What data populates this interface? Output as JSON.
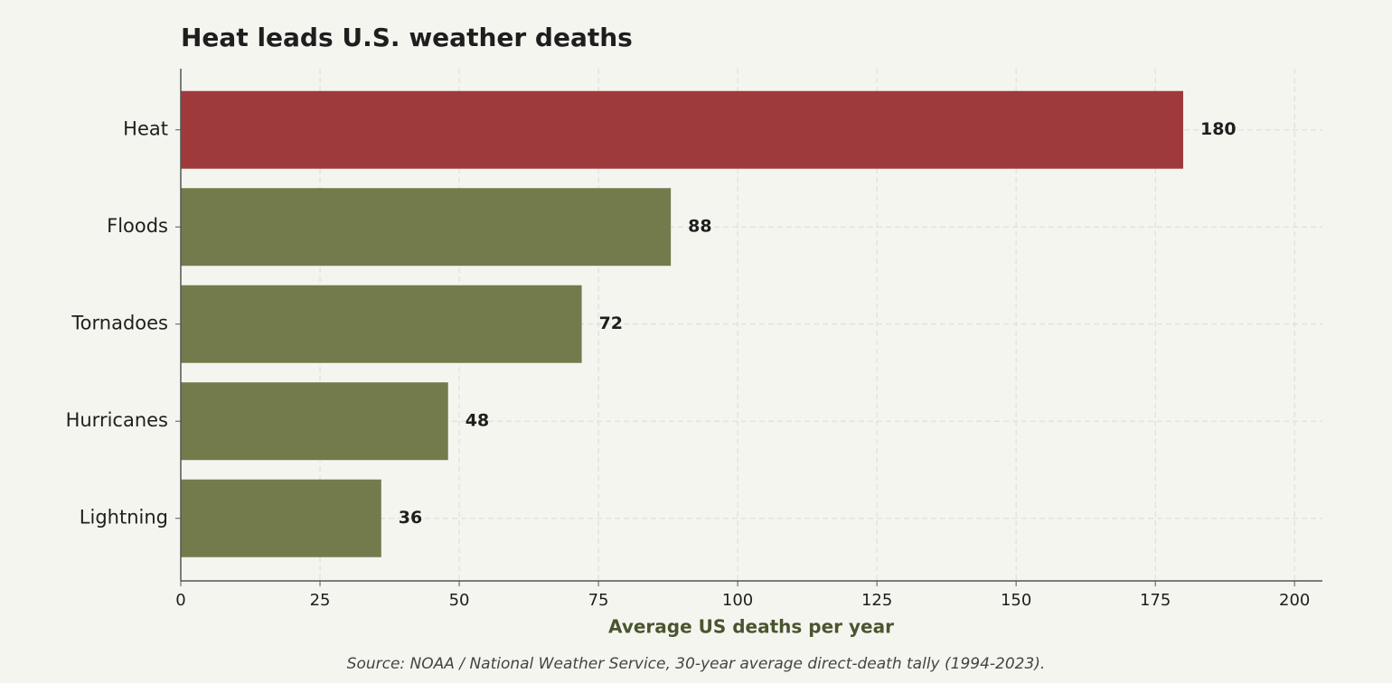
{
  "chart_data": {
    "type": "barh",
    "title": "Heat leads U.S. weather deaths",
    "categories": [
      "Heat",
      "Floods",
      "Tornadoes",
      "Hurricanes",
      "Lightning"
    ],
    "values": [
      180,
      88,
      72,
      48,
      36
    ],
    "colors": [
      "#9e3a3c",
      "#737b4c",
      "#737b4c",
      "#737b4c",
      "#737b4c"
    ],
    "xlim": [
      0,
      205
    ],
    "xticks": [
      0,
      25,
      50,
      75,
      100,
      125,
      150,
      175,
      200
    ],
    "xlabel": "Average US deaths per year",
    "source": "Source: NOAA / National Weather Service, 30-year average direct-death tally (1994-2023).",
    "grid": true
  }
}
